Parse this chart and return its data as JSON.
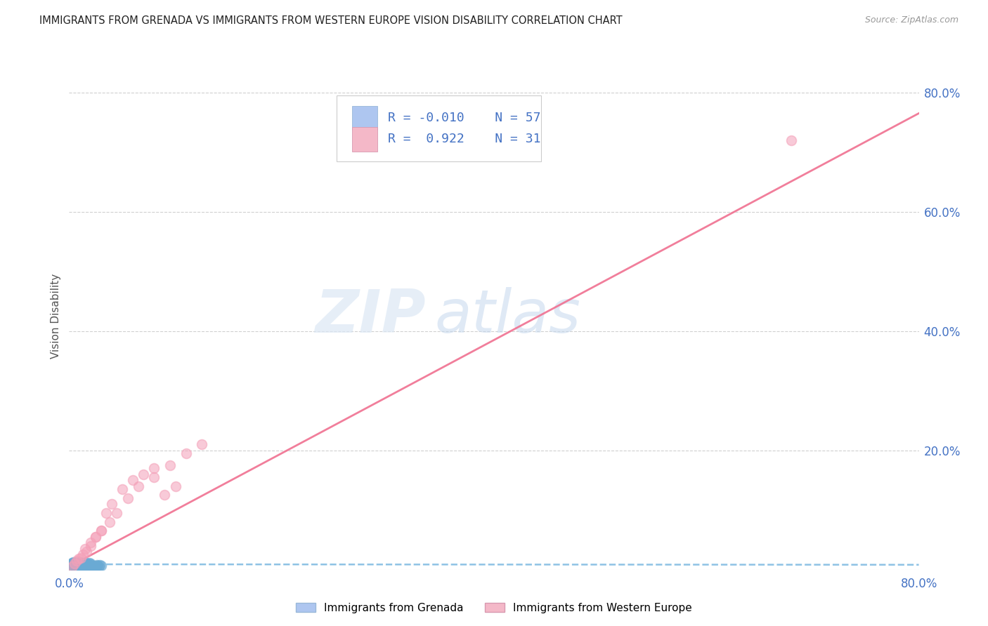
{
  "title": "IMMIGRANTS FROM GRENADA VS IMMIGRANTS FROM WESTERN EUROPE VISION DISABILITY CORRELATION CHART",
  "source": "Source: ZipAtlas.com",
  "ylabel": "Vision Disability",
  "xlim": [
    0,
    0.8
  ],
  "ylim": [
    0,
    0.85
  ],
  "background_color": "#ffffff",
  "watermark_zip": "ZIP",
  "watermark_atlas": "atlas",
  "legend_R1": "-0.010",
  "legend_N1": "57",
  "legend_R2": "0.922",
  "legend_N2": "31",
  "legend_color1": "#aec6f0",
  "legend_color2": "#f4b8c8",
  "scatter_color_blue": "#6aaad4",
  "scatter_color_pink": "#f4a0b8",
  "line_color_blue": "#7ab8e0",
  "line_color_pink": "#f07090",
  "label1": "Immigrants from Grenada",
  "label2": "Immigrants from Western Europe",
  "grenada_x": [
    0.001,
    0.002,
    0.003,
    0.004,
    0.005,
    0.006,
    0.007,
    0.008,
    0.009,
    0.01,
    0.011,
    0.012,
    0.013,
    0.014,
    0.015,
    0.016,
    0.017,
    0.018,
    0.019,
    0.02,
    0.021,
    0.022,
    0.023,
    0.024,
    0.025,
    0.026,
    0.027,
    0.028,
    0.029,
    0.03,
    0.002,
    0.003,
    0.004,
    0.005,
    0.006,
    0.007,
    0.008,
    0.009,
    0.01,
    0.011,
    0.012,
    0.013,
    0.014,
    0.015,
    0.016,
    0.017,
    0.018,
    0.019,
    0.02,
    0.003,
    0.004,
    0.005,
    0.006,
    0.007,
    0.008,
    0.009,
    0.01
  ],
  "grenada_y": [
    0.005,
    0.007,
    0.006,
    0.008,
    0.007,
    0.009,
    0.006,
    0.008,
    0.007,
    0.006,
    0.008,
    0.007,
    0.006,
    0.008,
    0.007,
    0.006,
    0.008,
    0.007,
    0.006,
    0.008,
    0.007,
    0.006,
    0.005,
    0.007,
    0.006,
    0.008,
    0.007,
    0.006,
    0.008,
    0.007,
    0.01,
    0.009,
    0.011,
    0.01,
    0.009,
    0.011,
    0.01,
    0.009,
    0.011,
    0.01,
    0.009,
    0.011,
    0.01,
    0.009,
    0.011,
    0.01,
    0.009,
    0.011,
    0.01,
    0.012,
    0.013,
    0.011,
    0.012,
    0.013,
    0.011,
    0.012,
    0.013
  ],
  "western_europe_x": [
    0.003,
    0.005,
    0.007,
    0.009,
    0.011,
    0.013,
    0.016,
    0.02,
    0.025,
    0.03,
    0.038,
    0.045,
    0.055,
    0.065,
    0.08,
    0.095,
    0.11,
    0.125,
    0.015,
    0.02,
    0.025,
    0.03,
    0.035,
    0.04,
    0.05,
    0.06,
    0.07,
    0.08,
    0.09,
    0.1,
    0.68
  ],
  "western_europe_y": [
    0.006,
    0.01,
    0.015,
    0.018,
    0.02,
    0.025,
    0.03,
    0.04,
    0.055,
    0.065,
    0.08,
    0.095,
    0.12,
    0.14,
    0.155,
    0.175,
    0.195,
    0.21,
    0.035,
    0.045,
    0.055,
    0.065,
    0.095,
    0.11,
    0.135,
    0.15,
    0.16,
    0.17,
    0.125,
    0.14,
    0.72
  ],
  "blue_line_x": [
    0.0,
    0.8
  ],
  "blue_line_y": [
    0.009,
    0.0082
  ],
  "pink_line_x": [
    0.0,
    0.8
  ],
  "pink_line_y": [
    0.005,
    0.765
  ],
  "ytick_vals": [
    0.0,
    0.2,
    0.4,
    0.6,
    0.8
  ],
  "ytick_labels": [
    "",
    "20.0%",
    "40.0%",
    "60.0%",
    "80.0%"
  ]
}
